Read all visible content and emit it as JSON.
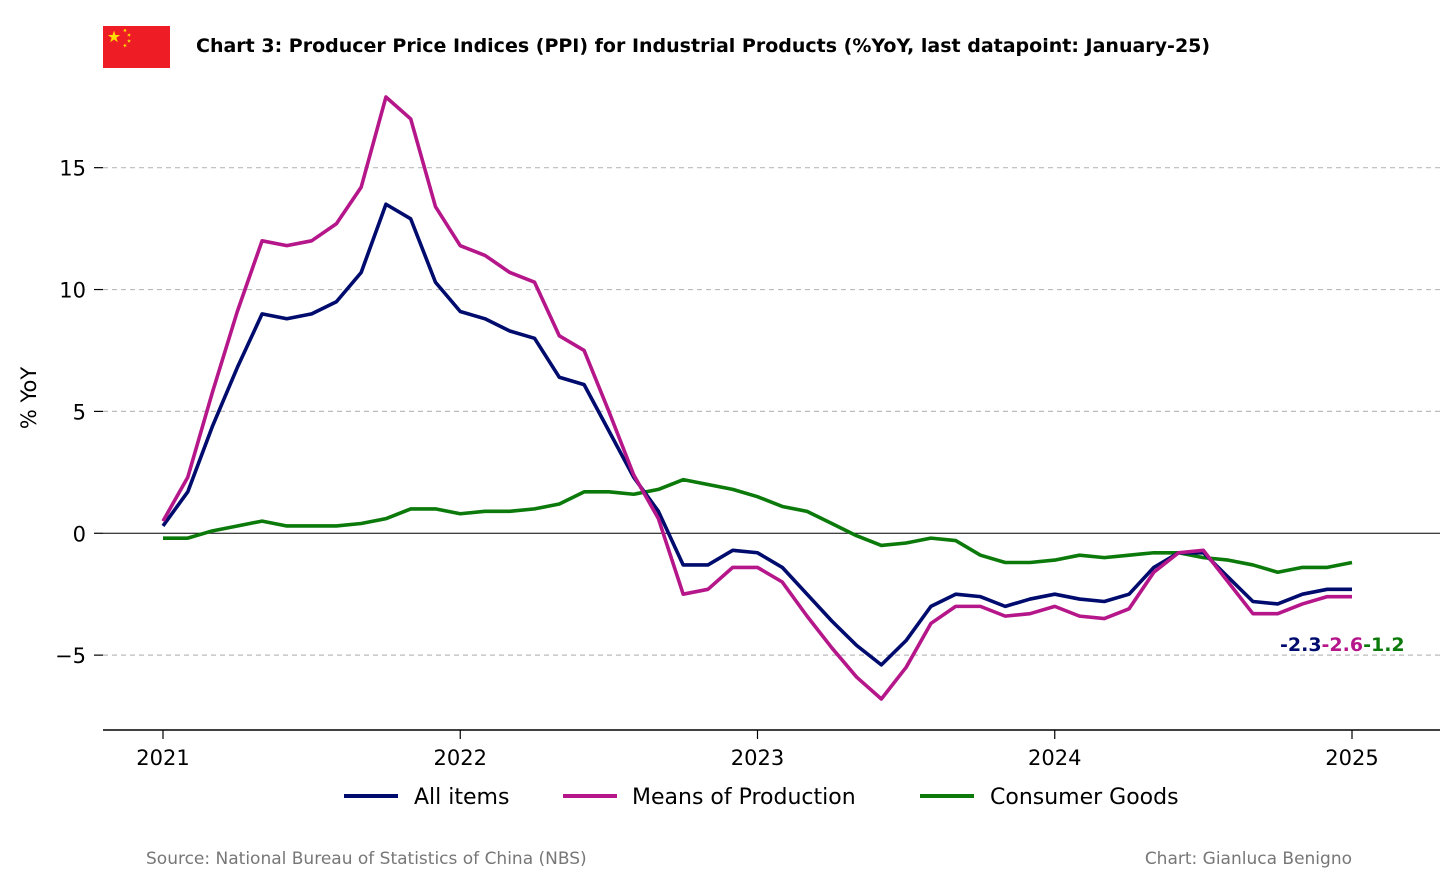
{
  "colors": {
    "all_items": "#000b6e",
    "means_of_production": "#b5178a",
    "consumer_goods": "#0b7a0b",
    "grid": "#bbbbbb",
    "flag_red": "#ee1c25",
    "flag_star": "#ffde00"
  },
  "footer": {
    "source": "Source: National Bureau of Statistics of China (NBS)",
    "credit": "Chart: Gianluca Benigno"
  },
  "chart_data": {
    "type": "line",
    "title": "Chart 3: Producer Price Indices (PPI) for Industrial Products (%YoY, last datapoint: January-25)",
    "flag_icon": "china-flag-icon",
    "ylabel": "% YoY",
    "xlabel": "",
    "ylim": [
      -8.0,
      18.2
    ],
    "xlim": [
      "2020-11",
      "2025-04"
    ],
    "yticks": [
      -5,
      0,
      5,
      10,
      15
    ],
    "ytick_labels": [
      "−5",
      "0",
      "5",
      "10",
      "15"
    ],
    "xticks": [
      "2021-01",
      "2022-01",
      "2023-01",
      "2024-01",
      "2025-01"
    ],
    "xtick_labels": [
      "2021",
      "2022",
      "2023",
      "2024",
      "2025"
    ],
    "grid": "horizontal dashed",
    "zero_line": true,
    "legend_position": "bottom-center",
    "x": [
      "2021-01",
      "2021-02",
      "2021-03",
      "2021-04",
      "2021-05",
      "2021-06",
      "2021-07",
      "2021-08",
      "2021-09",
      "2021-10",
      "2021-11",
      "2021-12",
      "2022-01",
      "2022-02",
      "2022-03",
      "2022-04",
      "2022-05",
      "2022-06",
      "2022-07",
      "2022-08",
      "2022-09",
      "2022-10",
      "2022-11",
      "2022-12",
      "2023-01",
      "2023-02",
      "2023-03",
      "2023-04",
      "2023-05",
      "2023-06",
      "2023-07",
      "2023-08",
      "2023-09",
      "2023-10",
      "2023-11",
      "2023-12",
      "2024-01",
      "2024-02",
      "2024-03",
      "2024-04",
      "2024-05",
      "2024-06",
      "2024-07",
      "2024-08",
      "2024-09",
      "2024-10",
      "2024-11",
      "2024-12",
      "2025-01"
    ],
    "series": [
      {
        "name": "All items",
        "color_key": "all_items",
        "values": [
          0.3,
          1.7,
          4.4,
          6.8,
          9.0,
          8.8,
          9.0,
          9.5,
          10.7,
          13.5,
          12.9,
          10.3,
          9.1,
          8.8,
          8.3,
          8.0,
          6.4,
          6.1,
          4.2,
          2.3,
          0.9,
          -1.3,
          -1.3,
          -0.7,
          -0.8,
          -1.4,
          -2.5,
          -3.6,
          -4.6,
          -5.4,
          -4.4,
          -3.0,
          -2.5,
          -2.6,
          -3.0,
          -2.7,
          -2.5,
          -2.7,
          -2.8,
          -2.5,
          -1.4,
          -0.8,
          -0.8,
          -1.8,
          -2.8,
          -2.9,
          -2.5,
          -2.3,
          -2.3
        ]
      },
      {
        "name": "Means of Production",
        "color_key": "means_of_production",
        "values": [
          0.5,
          2.3,
          5.8,
          9.1,
          12.0,
          11.8,
          12.0,
          12.7,
          14.2,
          17.9,
          17.0,
          13.4,
          11.8,
          11.4,
          10.7,
          10.3,
          8.1,
          7.5,
          5.0,
          2.4,
          0.6,
          -2.5,
          -2.3,
          -1.4,
          -1.4,
          -2.0,
          -3.4,
          -4.7,
          -5.9,
          -6.8,
          -5.5,
          -3.7,
          -3.0,
          -3.0,
          -3.4,
          -3.3,
          -3.0,
          -3.4,
          -3.5,
          -3.1,
          -1.6,
          -0.8,
          -0.7,
          -2.0,
          -3.3,
          -3.3,
          -2.9,
          -2.6,
          -2.6
        ]
      },
      {
        "name": "Consumer Goods",
        "color_key": "consumer_goods",
        "values": [
          -0.2,
          -0.2,
          0.1,
          0.3,
          0.5,
          0.3,
          0.3,
          0.3,
          0.4,
          0.6,
          1.0,
          1.0,
          0.8,
          0.9,
          0.9,
          1.0,
          1.2,
          1.7,
          1.7,
          1.6,
          1.8,
          2.2,
          2.0,
          1.8,
          1.5,
          1.1,
          0.9,
          0.4,
          -0.1,
          -0.5,
          -0.4,
          -0.2,
          -0.3,
          -0.9,
          -1.2,
          -1.2,
          -1.1,
          -0.9,
          -1.0,
          -0.9,
          -0.8,
          -0.8,
          -1.0,
          -1.1,
          -1.3,
          -1.6,
          -1.4,
          -1.4,
          -1.2
        ]
      }
    ],
    "end_labels": [
      {
        "text": "-2.3",
        "color_key": "all_items"
      },
      {
        "text": "-2.6",
        "color_key": "means_of_production"
      },
      {
        "text": "-1.2",
        "color_key": "consumer_goods"
      }
    ]
  }
}
